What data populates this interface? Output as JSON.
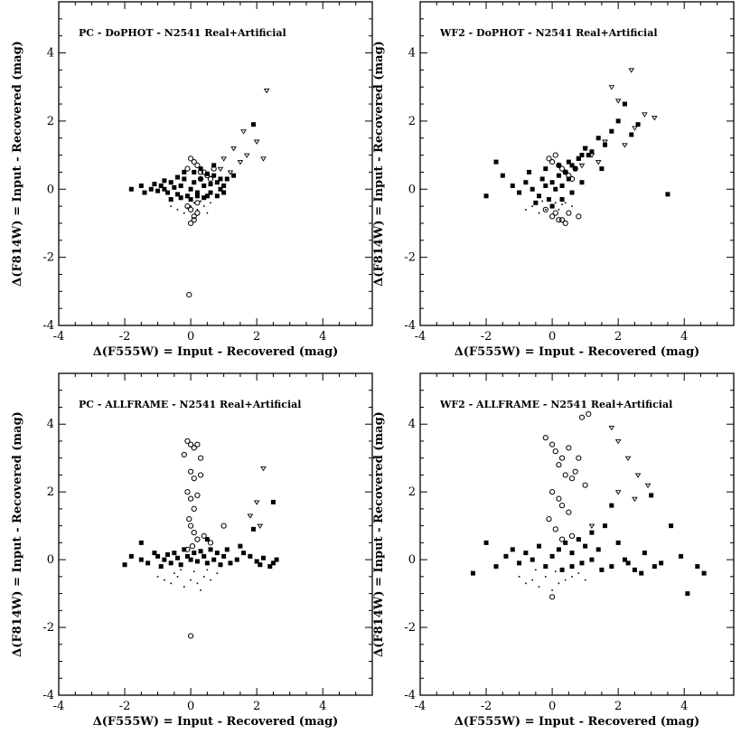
{
  "chart_data": [
    {
      "type": "scatter",
      "title": "PC - DoPHOT - N2541 Real+Artificial",
      "xlabel": "Δ(F555W) = Input - Recovered (mag)",
      "ylabel": "Δ(F814W) = Input - Recovered (mag)",
      "xlim": [
        -4,
        5.5
      ],
      "ylim": [
        -4,
        5.5
      ],
      "xticks": [
        -4,
        -2,
        0,
        2,
        4
      ],
      "yticks": [
        -4,
        -2,
        0,
        2,
        4
      ],
      "grid": false,
      "series": [
        {
          "marker": "filled-square",
          "x": [
            -1.8,
            -1.5,
            -1.4,
            -1.2,
            -1.1,
            -1.0,
            -0.9,
            -0.8,
            -0.7,
            -0.6,
            -0.5,
            -0.4,
            -0.3,
            -0.2,
            -0.1,
            0.0,
            0.1,
            0.2,
            0.3,
            0.4,
            0.5,
            0.6,
            0.7,
            0.8,
            0.9,
            1.0,
            1.1,
            -0.6,
            -0.3,
            0.0,
            0.2,
            0.4,
            0.6,
            0.8,
            1.0,
            -0.8,
            -0.4,
            0.1,
            0.5,
            0.9,
            1.3,
            0.3,
            -0.2,
            0.7,
            1.9
          ],
          "y": [
            0.0,
            0.1,
            -0.1,
            0.0,
            0.15,
            -0.05,
            0.1,
            0.0,
            -0.1,
            0.2,
            0.05,
            -0.15,
            0.1,
            0.3,
            -0.2,
            0.0,
            0.2,
            -0.1,
            0.3,
            0.1,
            -0.2,
            0.15,
            0.4,
            0.2,
            0.0,
            -0.1,
            0.3,
            -0.3,
            -0.25,
            -0.3,
            -0.2,
            -0.25,
            -0.1,
            -0.2,
            0.1,
            0.25,
            0.35,
            0.5,
            0.45,
            0.3,
            0.4,
            0.6,
            0.5,
            0.7,
            1.9
          ]
        },
        {
          "marker": "open-circle",
          "x": [
            0.0,
            0.1,
            -0.1,
            0.2,
            0.3,
            0.4,
            0.5,
            0.3,
            0.2,
            0.0,
            0.1,
            -0.1,
            0.2,
            0.0,
            0.1,
            0.6,
            0.7,
            -0.05
          ],
          "y": [
            0.9,
            0.8,
            0.6,
            0.7,
            0.5,
            0.5,
            0.4,
            0.3,
            -0.4,
            -0.6,
            -0.8,
            -0.5,
            -0.7,
            -1.0,
            -0.9,
            0.3,
            0.6,
            -3.1
          ]
        },
        {
          "marker": "open-triangle",
          "x": [
            1.0,
            1.3,
            1.5,
            1.7,
            2.0,
            2.2,
            2.3,
            1.2,
            0.9,
            1.6
          ],
          "y": [
            0.9,
            1.2,
            0.8,
            1.0,
            1.4,
            0.9,
            2.9,
            0.5,
            0.6,
            1.7
          ]
        },
        {
          "marker": "dot",
          "x": [
            -0.6,
            -0.4,
            -0.2,
            0.0,
            0.2,
            0.4,
            -0.3,
            0.1,
            0.3,
            0.6,
            -0.1,
            0.5
          ],
          "y": [
            -0.5,
            -0.6,
            -0.7,
            -0.5,
            -0.6,
            -0.5,
            -0.3,
            -0.4,
            -0.35,
            -0.4,
            -0.55,
            -0.7
          ]
        }
      ]
    },
    {
      "type": "scatter",
      "title": "WF2 - DoPHOT - N2541 Real+Artificial",
      "xlabel": "Δ(F555W) = Input - Recovered (mag)",
      "ylabel": "Δ(F814W) = Input - Recovered (mag)",
      "xlim": [
        -4,
        5.5
      ],
      "ylim": [
        -4,
        5.5
      ],
      "xticks": [
        -4,
        -2,
        0,
        2,
        4
      ],
      "yticks": [
        -4,
        -2,
        0,
        2,
        4
      ],
      "grid": false,
      "series": [
        {
          "marker": "filled-square",
          "x": [
            -2.0,
            -1.7,
            -1.5,
            -1.2,
            -1.0,
            -0.8,
            -0.6,
            -0.4,
            -0.3,
            -0.2,
            -0.1,
            0.0,
            0.1,
            0.2,
            0.3,
            0.4,
            0.5,
            0.6,
            0.7,
            0.8,
            0.9,
            1.0,
            1.2,
            1.4,
            1.6,
            1.8,
            2.0,
            2.2,
            2.4,
            2.6,
            -0.5,
            0.0,
            0.3,
            0.6,
            0.9,
            -0.7,
            -0.2,
            0.2,
            0.5,
            0.8,
            1.1,
            3.5,
            1.5
          ],
          "y": [
            -0.2,
            0.8,
            0.4,
            0.1,
            -0.1,
            0.2,
            0.0,
            -0.2,
            0.3,
            0.1,
            -0.3,
            0.2,
            0.0,
            0.4,
            0.1,
            0.5,
            0.3,
            0.7,
            0.6,
            0.9,
            1.0,
            1.2,
            1.1,
            1.5,
            1.3,
            1.7,
            2.0,
            2.5,
            1.6,
            1.9,
            -0.4,
            -0.5,
            -0.3,
            -0.1,
            0.2,
            0.5,
            0.6,
            0.7,
            0.8,
            0.9,
            1.0,
            -0.15,
            0.6
          ]
        },
        {
          "marker": "open-circle",
          "x": [
            -0.1,
            0.0,
            0.1,
            0.2,
            0.3,
            0.4,
            0.5,
            0.6,
            0.7,
            0.8,
            0.1,
            0.3,
            -0.2,
            0.0,
            0.2,
            0.5,
            0.4
          ],
          "y": [
            0.9,
            0.8,
            1.0,
            0.7,
            0.6,
            0.5,
            0.4,
            0.3,
            0.6,
            -0.8,
            -0.7,
            -0.9,
            -0.6,
            -0.8,
            -0.9,
            -0.7,
            -1.0
          ]
        },
        {
          "marker": "open-triangle",
          "x": [
            1.2,
            1.6,
            1.8,
            2.0,
            2.4,
            2.8,
            3.1,
            2.5,
            1.4,
            0.9,
            2.2,
            1.0
          ],
          "y": [
            1.0,
            1.4,
            3.0,
            2.6,
            3.5,
            2.2,
            2.1,
            1.8,
            0.8,
            0.7,
            1.3,
            1.2
          ]
        },
        {
          "marker": "dot",
          "x": [
            -0.8,
            -0.6,
            -0.4,
            -0.2,
            0.0,
            0.2,
            0.4,
            0.6,
            -0.3,
            0.1,
            0.3
          ],
          "y": [
            -0.6,
            -0.5,
            -0.7,
            -0.6,
            -0.5,
            -0.6,
            -0.4,
            -0.5,
            -0.35,
            -0.4,
            -0.45
          ]
        }
      ]
    },
    {
      "type": "scatter",
      "title": "PC - ALLFRAME - N2541 Real+Artificial",
      "xlabel": "Δ(F555W) = Input - Recovered (mag)",
      "ylabel": "Δ(F814W) = Input - Recovered (mag)",
      "xlim": [
        -4,
        5.5
      ],
      "ylim": [
        -4,
        5.5
      ],
      "xticks": [
        -4,
        -2,
        0,
        2,
        4
      ],
      "yticks": [
        -4,
        -2,
        0,
        2,
        4
      ],
      "grid": false,
      "series": [
        {
          "marker": "filled-square",
          "x": [
            -2.0,
            -1.8,
            -1.5,
            -1.3,
            -1.1,
            -1.0,
            -0.9,
            -0.8,
            -0.7,
            -0.6,
            -0.5,
            -0.4,
            -0.3,
            -0.2,
            -0.1,
            0.0,
            0.1,
            0.2,
            0.3,
            0.4,
            0.5,
            0.6,
            0.7,
            0.8,
            0.9,
            1.0,
            1.1,
            1.2,
            1.4,
            1.6,
            1.8,
            2.0,
            2.1,
            2.2,
            2.4,
            2.5,
            2.6,
            -1.5,
            0.5,
            1.5,
            2.5,
            1.9
          ],
          "y": [
            -0.15,
            0.1,
            0.0,
            -0.1,
            0.2,
            0.1,
            -0.2,
            0.0,
            0.15,
            -0.1,
            0.2,
            0.05,
            -0.15,
            0.3,
            0.1,
            0.0,
            0.2,
            -0.05,
            0.25,
            0.1,
            -0.1,
            0.3,
            0.0,
            0.2,
            -0.15,
            0.1,
            0.3,
            -0.1,
            0.0,
            0.2,
            0.1,
            -0.05,
            -0.15,
            0.05,
            -0.2,
            -0.1,
            0.0,
            0.5,
            0.6,
            0.4,
            1.7,
            0.9
          ]
        },
        {
          "marker": "open-circle",
          "x": [
            -0.1,
            0.0,
            0.1,
            0.2,
            0.3,
            -0.2,
            0.0,
            0.1,
            0.3,
            -0.1,
            0.0,
            0.2,
            0.1,
            -0.05,
            0.0,
            0.1,
            0.2,
            0.05,
            -0.1,
            0.4,
            0.6,
            1.0,
            0.0
          ],
          "y": [
            3.5,
            3.4,
            3.3,
            3.4,
            3.0,
            3.1,
            2.6,
            2.4,
            2.5,
            2.0,
            1.8,
            1.9,
            1.5,
            1.2,
            1.0,
            0.8,
            0.6,
            0.4,
            0.3,
            0.7,
            0.5,
            1.0,
            -2.25
          ]
        },
        {
          "marker": "open-triangle",
          "x": [
            1.8,
            2.0,
            2.2,
            2.1
          ],
          "y": [
            1.3,
            1.7,
            2.7,
            1.0
          ]
        },
        {
          "marker": "dot",
          "x": [
            -1.0,
            -0.8,
            -0.6,
            -0.4,
            -0.2,
            0.0,
            0.2,
            0.4,
            0.6,
            0.8,
            -0.3,
            0.1,
            0.5,
            -0.5,
            0.3
          ],
          "y": [
            -0.5,
            -0.6,
            -0.7,
            -0.5,
            -0.8,
            -0.6,
            -0.7,
            -0.5,
            -0.6,
            -0.4,
            -0.3,
            -0.35,
            -0.3,
            -0.4,
            -0.9
          ]
        }
      ]
    },
    {
      "type": "scatter",
      "title": "WF2 - ALLFRAME - N2541 Real+Artificial",
      "xlabel": "Δ(F555W) = Input - Recovered (mag)",
      "ylabel": "Δ(F814W) = Input - Recovered (mag)",
      "xlim": [
        -4,
        5.5
      ],
      "ylim": [
        -4,
        5.5
      ],
      "xticks": [
        -4,
        -2,
        0,
        2,
        4
      ],
      "yticks": [
        -4,
        -2,
        0,
        2,
        4
      ],
      "grid": false,
      "series": [
        {
          "marker": "filled-square",
          "x": [
            -2.4,
            -2.0,
            -1.7,
            -1.4,
            -1.2,
            -1.0,
            -0.8,
            -0.6,
            -0.4,
            -0.2,
            0.0,
            0.2,
            0.4,
            0.6,
            0.8,
            1.0,
            1.2,
            1.4,
            1.6,
            1.8,
            2.0,
            2.2,
            2.5,
            2.8,
            3.0,
            3.3,
            3.6,
            3.9,
            4.1,
            4.4,
            4.6,
            0.3,
            0.6,
            0.9,
            1.2,
            1.5,
            1.8,
            2.3,
            2.7,
            3.1
          ],
          "y": [
            -0.4,
            0.5,
            -0.2,
            0.1,
            0.3,
            -0.1,
            0.2,
            0.0,
            0.4,
            -0.2,
            0.1,
            0.3,
            0.5,
            0.2,
            0.6,
            0.4,
            0.8,
            0.3,
            1.0,
            1.6,
            0.5,
            0.0,
            -0.3,
            0.2,
            1.9,
            -0.1,
            1.0,
            0.1,
            -1.0,
            -0.2,
            -0.4,
            -0.3,
            -0.2,
            -0.1,
            0.0,
            -0.3,
            -0.2,
            -0.1,
            -0.4,
            -0.2
          ]
        },
        {
          "marker": "open-circle",
          "x": [
            -0.2,
            0.0,
            0.1,
            0.3,
            0.5,
            0.7,
            0.9,
            0.2,
            0.4,
            0.6,
            0.8,
            1.0,
            0.0,
            0.2,
            0.3,
            0.5,
            1.1,
            -0.1,
            0.1,
            0.3,
            0.6,
            0.0
          ],
          "y": [
            3.6,
            3.4,
            3.2,
            3.0,
            3.3,
            2.6,
            4.2,
            2.8,
            2.5,
            2.4,
            3.0,
            2.2,
            2.0,
            1.8,
            1.6,
            1.4,
            4.3,
            1.2,
            0.9,
            0.6,
            0.7,
            -1.1
          ]
        },
        {
          "marker": "open-triangle",
          "x": [
            1.8,
            2.0,
            2.3,
            2.6,
            2.9,
            2.5,
            2.0,
            1.2
          ],
          "y": [
            3.9,
            3.5,
            3.0,
            2.5,
            2.2,
            1.8,
            2.0,
            1.0
          ]
        },
        {
          "marker": "dot",
          "x": [
            -1.0,
            -0.8,
            -0.6,
            -0.4,
            -0.2,
            0.0,
            0.2,
            0.4,
            0.6,
            -0.5,
            0.1,
            0.3,
            0.8,
            1.0
          ],
          "y": [
            -0.5,
            -0.7,
            -0.6,
            -0.8,
            -0.5,
            -0.9,
            -0.7,
            -0.6,
            -0.5,
            -0.3,
            -0.35,
            -0.3,
            -0.4,
            -0.6
          ]
        }
      ]
    }
  ]
}
